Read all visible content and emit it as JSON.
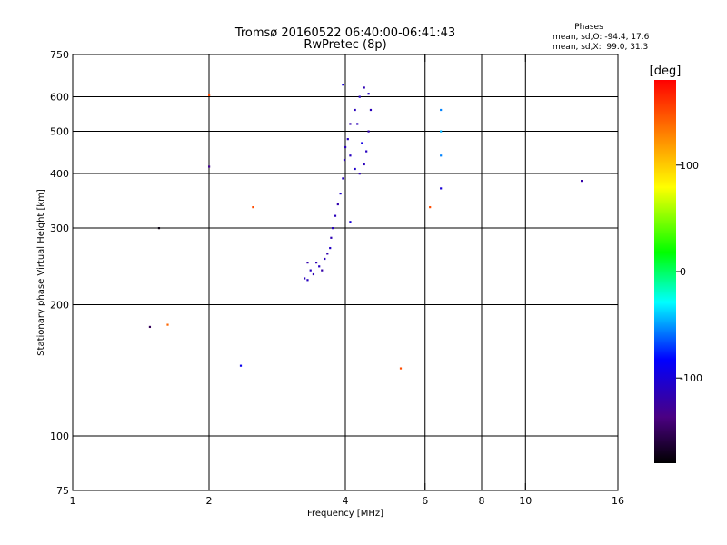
{
  "chart_data": {
    "type": "scatter",
    "title": "Tromsø 20160522 06:40:00-06:41:43",
    "subtitle": "RwPretec (8p)",
    "xlabel": "Frequency [MHz]",
    "ylabel": "Stationary phase Virtual Height [km]",
    "x_scale": "log",
    "y_scale": "log",
    "xlim": [
      1,
      16
    ],
    "ylim": [
      75,
      750
    ],
    "x_ticks": [
      1,
      2,
      4,
      6,
      8,
      10,
      16
    ],
    "y_ticks": [
      75,
      100,
      200,
      300,
      400,
      500,
      600,
      750
    ],
    "x_gridlines": [
      2,
      4,
      6,
      8,
      10
    ],
    "y_gridlines": [
      100,
      200,
      300,
      400,
      500,
      600
    ],
    "phases_box": {
      "heading": "Phases",
      "line_o": "mean, sd,O: -94.4, 17.6",
      "line_x": "mean, sd,X:  99.0, 31.3"
    },
    "colorbar": {
      "label": "[deg]",
      "range": [
        -180,
        180
      ],
      "ticks": [
        100,
        0,
        -100
      ],
      "tick_labels": [
        "100",
        "0",
        "-100"
      ]
    },
    "points": [
      [
        3.45,
        250,
        -115
      ],
      [
        3.5,
        245,
        -110
      ],
      [
        3.55,
        240,
        -120
      ],
      [
        3.6,
        255,
        -112
      ],
      [
        3.65,
        262,
        -118
      ],
      [
        3.7,
        270,
        -108
      ],
      [
        3.72,
        285,
        -115
      ],
      [
        3.75,
        300,
        -110
      ],
      [
        3.8,
        320,
        -112
      ],
      [
        3.85,
        340,
        -118
      ],
      [
        3.9,
        360,
        -105
      ],
      [
        3.95,
        390,
        -110
      ],
      [
        3.98,
        430,
        -115
      ],
      [
        4.0,
        460,
        -112
      ],
      [
        4.05,
        480,
        -110
      ],
      [
        4.1,
        520,
        -118
      ],
      [
        4.2,
        560,
        -112
      ],
      [
        4.3,
        600,
        -110
      ],
      [
        4.4,
        630,
        -115
      ],
      [
        4.5,
        610,
        -108
      ],
      [
        4.55,
        560,
        -112
      ],
      [
        4.5,
        500,
        -118
      ],
      [
        4.45,
        450,
        -110
      ],
      [
        4.4,
        420,
        -112
      ],
      [
        4.3,
        400,
        -115
      ],
      [
        4.2,
        410,
        -105
      ],
      [
        4.1,
        440,
        -110
      ],
      [
        4.35,
        470,
        -95
      ],
      [
        4.25,
        520,
        -112
      ],
      [
        3.4,
        235,
        -115
      ],
      [
        3.35,
        240,
        -110
      ],
      [
        3.3,
        250,
        -118
      ],
      [
        3.25,
        230,
        -112
      ],
      [
        3.3,
        228,
        -110
      ],
      [
        3.95,
        640,
        -100
      ],
      [
        6.5,
        560,
        -55
      ],
      [
        6.5,
        440,
        -55
      ],
      [
        6.5,
        500,
        -45
      ],
      [
        6.5,
        370,
        -100
      ],
      [
        2.0,
        605,
        150
      ],
      [
        2.5,
        335,
        150
      ],
      [
        2.0,
        415,
        -130
      ],
      [
        1.55,
        300,
        -175
      ],
      [
        1.48,
        178,
        -150
      ],
      [
        1.62,
        180,
        140
      ],
      [
        2.35,
        145,
        -90
      ],
      [
        5.3,
        143,
        150
      ],
      [
        6.15,
        335,
        150
      ],
      [
        13.3,
        385,
        -120
      ],
      [
        4.1,
        310,
        -100
      ]
    ]
  }
}
